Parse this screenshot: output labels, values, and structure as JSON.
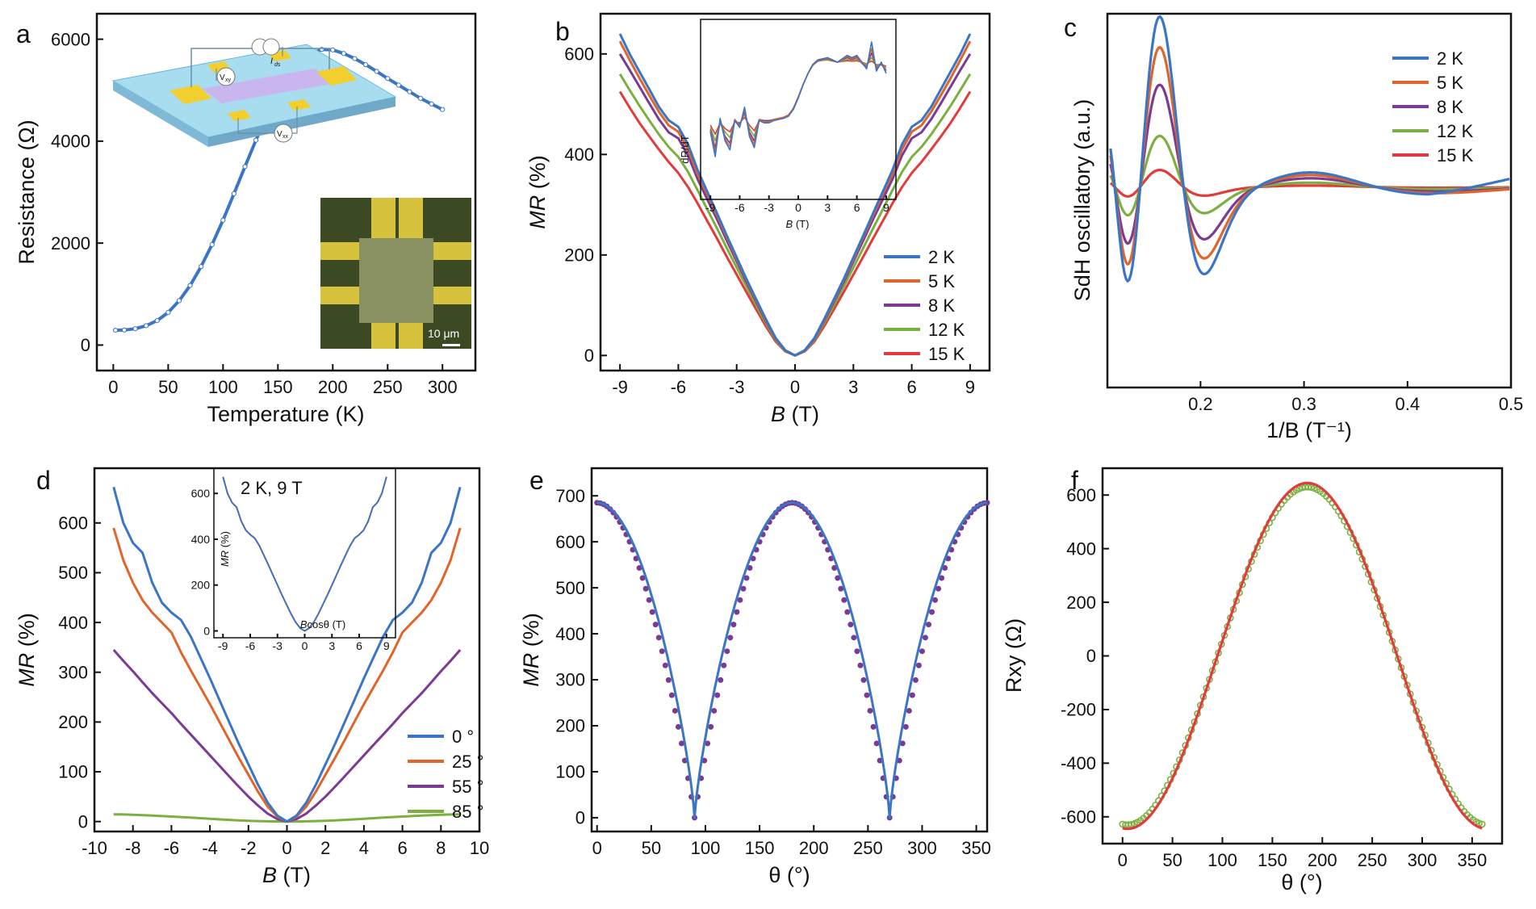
{
  "chart_data": [
    {
      "id": "a",
      "type": "line",
      "panel_label": "a",
      "xlabel": "Temperature (K)",
      "ylabel": "Resistance (Ω)",
      "xlim": [
        -15,
        330
      ],
      "ylim": [
        -500,
        6500
      ],
      "xticks": [
        0,
        50,
        100,
        150,
        200,
        250,
        300
      ],
      "yticks": [
        0,
        2000,
        4000,
        6000
      ],
      "series": [
        {
          "color": "#3b75c6",
          "x": [
            2,
            10,
            20,
            30,
            40,
            50,
            60,
            70,
            80,
            90,
            100,
            110,
            120,
            130,
            140,
            150,
            160,
            170,
            180,
            190,
            200,
            210,
            220,
            230,
            240,
            250,
            260,
            270,
            280,
            290,
            300
          ],
          "y": [
            290,
            295,
            320,
            380,
            480,
            640,
            870,
            1170,
            1540,
            1970,
            2450,
            2970,
            3500,
            4020,
            4500,
            4920,
            5280,
            5550,
            5720,
            5800,
            5790,
            5720,
            5620,
            5500,
            5370,
            5230,
            5100,
            4970,
            4840,
            4730,
            4620
          ]
        }
      ],
      "inset_scale_label": "10 μm",
      "schematic_labels": [
        "I",
        "ds",
        "V",
        "xy",
        "V",
        "xx"
      ]
    },
    {
      "id": "b",
      "type": "line",
      "panel_label": "b",
      "xlabel_italic": "B",
      "xlabel_rest": " (T)",
      "ylabel_italic": "MR",
      "ylabel_rest": " (%)",
      "xlim": [
        -10,
        10
      ],
      "ylim": [
        -30,
        680
      ],
      "xticks": [
        -9,
        -6,
        -3,
        0,
        3,
        6,
        9
      ],
      "yticks": [
        0,
        200,
        400,
        600
      ],
      "legend": [
        "2 K",
        "5 K",
        "8 K",
        "12 K",
        "15 K"
      ],
      "colors": [
        "#3b75c6",
        "#e0652b",
        "#7b3b94",
        "#7bb041",
        "#e23b3b"
      ],
      "x": [
        0,
        0.5,
        1,
        1.5,
        2,
        2.5,
        3,
        3.5,
        4,
        4.5,
        5,
        5.5,
        6,
        6.5,
        7,
        7.5,
        8,
        8.5,
        9
      ],
      "series": [
        {
          "name": "2 K",
          "values": [
            0,
            10,
            35,
            72,
            112,
            152,
            195,
            238,
            282,
            325,
            368,
            420,
            455,
            468,
            495,
            530,
            565,
            600,
            640
          ]
        },
        {
          "name": "5 K",
          "values": [
            0,
            10,
            34,
            70,
            110,
            150,
            192,
            235,
            278,
            320,
            360,
            410,
            445,
            458,
            485,
            518,
            552,
            588,
            625
          ]
        },
        {
          "name": "8 K",
          "values": [
            0,
            10,
            33,
            68,
            107,
            146,
            187,
            228,
            270,
            310,
            350,
            398,
            432,
            444,
            470,
            502,
            535,
            568,
            600
          ]
        },
        {
          "name": "12 K",
          "values": [
            0,
            9,
            31,
            64,
            100,
            137,
            175,
            213,
            252,
            290,
            328,
            365,
            395,
            415,
            440,
            468,
            497,
            528,
            560
          ]
        },
        {
          "name": "15 K",
          "values": [
            0,
            8,
            28,
            58,
            92,
            126,
            161,
            196,
            232,
            267,
            302,
            335,
            363,
            385,
            410,
            436,
            463,
            493,
            525
          ]
        }
      ],
      "inset": {
        "xlabel_italic": "B",
        "xlabel_rest": " (T)",
        "ylabel": "dR/dT",
        "xticks": [
          -9,
          -6,
          -3,
          0,
          3,
          6,
          9
        ],
        "x": [
          -9,
          -8.5,
          -8,
          -7.5,
          -7,
          -6.5,
          -6,
          -5.5,
          -5,
          -4.5,
          -4,
          -3.5,
          -3,
          -2.5,
          -2,
          -1.5,
          -1,
          -0.5,
          0,
          0.5,
          1,
          1.5,
          2,
          2.5,
          3,
          3.5,
          4,
          4.5,
          5,
          5.5,
          6,
          6.5,
          7,
          7.5,
          8,
          8.5,
          9
        ],
        "series": [
          {
            "values": [
              -0.5,
              -1.6,
              0.1,
              -0.9,
              -1.3,
              0,
              -0.3,
              0.6,
              -0.7,
              -1.2,
              0,
              -0.1,
              -0.1,
              0,
              0.05,
              0.1,
              0.2,
              0.5,
              1.0,
              1.6,
              2.1,
              2.5,
              2.7,
              2.75,
              2.8,
              2.7,
              2.6,
              2.75,
              2.9,
              2.8,
              2.9,
              2.6,
              2.3,
              3.5,
              2.2,
              2.6,
              2.1
            ]
          },
          {
            "values": [
              -0.45,
              -1.4,
              0.0,
              -0.8,
              -1.15,
              0.05,
              -0.25,
              0.5,
              -0.6,
              -1.05,
              0.05,
              -0.05,
              -0.05,
              0.05,
              0.1,
              0.15,
              0.25,
              0.55,
              1.05,
              1.6,
              2.1,
              2.5,
              2.7,
              2.75,
              2.78,
              2.7,
              2.6,
              2.72,
              2.85,
              2.75,
              2.85,
              2.55,
              2.35,
              3.2,
              2.3,
              2.55,
              2.2
            ]
          },
          {
            "values": [
              -0.4,
              -1.2,
              -0.05,
              -0.7,
              -1.0,
              0.05,
              -0.2,
              0.4,
              -0.5,
              -0.9,
              0.05,
              0.0,
              0.0,
              0.05,
              0.1,
              0.15,
              0.25,
              0.55,
              1.05,
              1.6,
              2.1,
              2.5,
              2.68,
              2.73,
              2.76,
              2.68,
              2.6,
              2.7,
              2.8,
              2.72,
              2.8,
              2.55,
              2.4,
              3.0,
              2.35,
              2.5,
              2.25
            ]
          },
          {
            "values": [
              -0.3,
              -0.9,
              -0.1,
              -0.5,
              -0.75,
              0.0,
              -0.15,
              0.3,
              -0.35,
              -0.7,
              0.05,
              0.0,
              0.0,
              0.05,
              0.1,
              0.15,
              0.25,
              0.55,
              1.05,
              1.6,
              2.1,
              2.48,
              2.66,
              2.7,
              2.72,
              2.66,
              2.6,
              2.66,
              2.72,
              2.68,
              2.72,
              2.58,
              2.48,
              2.8,
              2.42,
              2.5,
              2.35
            ]
          },
          {
            "values": [
              -0.2,
              -0.6,
              -0.1,
              -0.35,
              -0.5,
              -0.05,
              -0.1,
              0.15,
              -0.2,
              -0.45,
              0.0,
              0.0,
              0.0,
              0.05,
              0.1,
              0.15,
              0.25,
              0.55,
              1.05,
              1.6,
              2.1,
              2.46,
              2.64,
              2.68,
              2.7,
              2.65,
              2.6,
              2.63,
              2.66,
              2.64,
              2.66,
              2.6,
              2.52,
              2.65,
              2.48,
              2.5,
              2.42
            ]
          }
        ]
      }
    },
    {
      "id": "c",
      "type": "line",
      "panel_label": "c",
      "xlabel": "1/B (T⁻¹)",
      "ylabel": "SdH oscillatory (a.u.)",
      "xlim": [
        0.11,
        0.5
      ],
      "xticks": [
        0.2,
        0.3,
        0.4,
        0.5
      ],
      "xtick_labels": [
        "0.2",
        "0.3",
        "0.4",
        "0.5"
      ],
      "legend": [
        "2 K",
        "5 K",
        "8 K",
        "12 K",
        "15 K"
      ],
      "colors": [
        "#3b75c6",
        "#e0652b",
        "#7b3b94",
        "#7bb041",
        "#e23b3b"
      ],
      "amplitude_scales": [
        1.0,
        0.82,
        0.6,
        0.3,
        0.1
      ]
    },
    {
      "id": "d",
      "type": "line",
      "panel_label": "d",
      "xlabel_italic": "B",
      "xlabel_rest": " (T)",
      "ylabel_italic": "MR",
      "ylabel_rest": " (%)",
      "xlim": [
        -10,
        10
      ],
      "ylim": [
        -20,
        710
      ],
      "xticks": [
        -10,
        -8,
        -6,
        -4,
        -2,
        0,
        2,
        4,
        6,
        8,
        10
      ],
      "yticks": [
        0,
        100,
        200,
        300,
        400,
        500,
        600
      ],
      "legend": [
        "0 °",
        "25 °",
        "55 °",
        "85 °"
      ],
      "colors": [
        "#3b75c6",
        "#e0652b",
        "#7b3b94",
        "#7bb041"
      ],
      "x": [
        0,
        0.5,
        1,
        1.5,
        2,
        2.5,
        3,
        3.5,
        4,
        4.5,
        5,
        5.5,
        6,
        6.5,
        7,
        7.5,
        8,
        8.5,
        9
      ],
      "series": [
        {
          "name": "0 °",
          "values": [
            0,
            12,
            38,
            74,
            115,
            156,
            200,
            244,
            288,
            330,
            372,
            405,
            420,
            440,
            480,
            540,
            560,
            600,
            672
          ]
        },
        {
          "name": "25 °",
          "values": [
            0,
            10,
            30,
            60,
            94,
            128,
            164,
            200,
            236,
            270,
            304,
            340,
            380,
            400,
            420,
            445,
            480,
            525,
            590
          ]
        },
        {
          "name": "55 °",
          "values": [
            0,
            5,
            16,
            32,
            50,
            70,
            91,
            112,
            133,
            154,
            175,
            196,
            218,
            238,
            258,
            280,
            302,
            323,
            345
          ]
        },
        {
          "name": "85 °",
          "values": [
            0,
            0.1,
            0.4,
            0.9,
            1.5,
            2.3,
            3.3,
            4.4,
            5.6,
            6.8,
            8.0,
            9.0,
            10.0,
            11.0,
            12.0,
            12.8,
            13.5,
            14.2,
            14.5
          ]
        }
      ],
      "inset": {
        "label": "2 K, 9 T",
        "xlabel_italic": "B",
        "xlabel_rest": "cosθ (T)",
        "ylabel_italic": "MR",
        "ylabel_rest": " (%)",
        "xticks": [
          -9,
          -6,
          -3,
          0,
          3,
          6,
          9
        ],
        "yticks": [
          0,
          200,
          400,
          600
        ]
      }
    },
    {
      "id": "e",
      "type": "line",
      "panel_label": "e",
      "xlabel": "θ (°)",
      "ylabel_italic": "MR",
      "ylabel_rest": " (%)",
      "xlim": [
        -5,
        360
      ],
      "ylim": [
        -30,
        760
      ],
      "xticks": [
        0,
        50,
        100,
        150,
        200,
        250,
        300,
        350
      ],
      "yticks": [
        0,
        100,
        200,
        300,
        400,
        500,
        600,
        700
      ],
      "peak": 685,
      "colors": [
        "#3b75c6",
        "#7b3b94"
      ]
    },
    {
      "id": "f",
      "type": "line",
      "panel_label": "f",
      "xlabel": "θ (°)",
      "ylabel": "Rxy (Ω)",
      "xlim": [
        -20,
        380
      ],
      "ylim": [
        -700,
        700
      ],
      "xticks": [
        0,
        50,
        100,
        150,
        200,
        250,
        300,
        350
      ],
      "yticks": [
        -600,
        -400,
        -200,
        0,
        200,
        400,
        600
      ],
      "amplitudes": [
        630,
        645
      ],
      "colors": [
        "#7bb041",
        "#e23b3b"
      ]
    }
  ]
}
